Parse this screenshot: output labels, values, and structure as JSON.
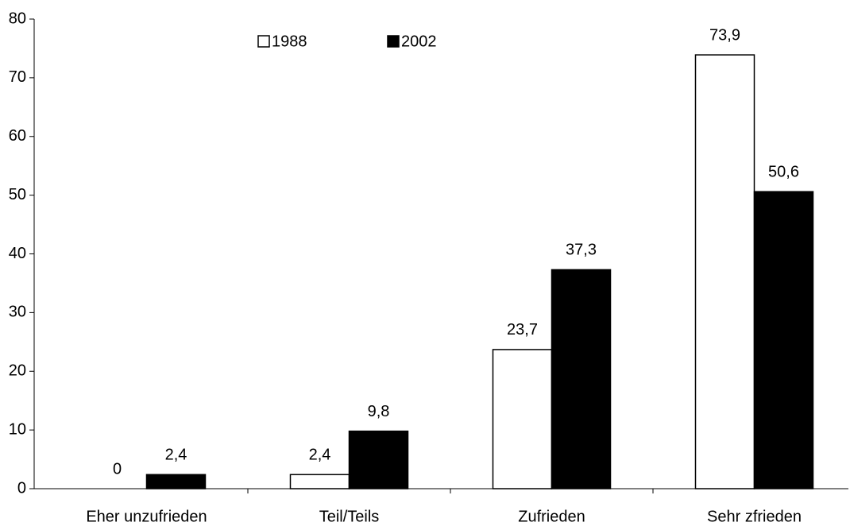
{
  "chart_data": {
    "type": "bar",
    "categories": [
      "Eher unzufrieden",
      "Teil/Teils",
      "Zufrieden",
      "Sehr zfrieden"
    ],
    "series": [
      {
        "name": "1988",
        "color": "#ffffff",
        "values": [
          0,
          2.4,
          23.7,
          73.9
        ],
        "value_labels": [
          "0",
          "2,4",
          "23,7",
          "73,9"
        ]
      },
      {
        "name": "2002",
        "color": "#000000",
        "values": [
          2.4,
          9.8,
          37.3,
          50.6
        ],
        "value_labels": [
          "2,4",
          "9,8",
          "37,3",
          "50,6"
        ]
      }
    ],
    "ylim": [
      0,
      80
    ],
    "yticks": [
      0,
      10,
      20,
      30,
      40,
      50,
      60,
      70,
      80
    ],
    "grid": false,
    "legend": "top"
  }
}
